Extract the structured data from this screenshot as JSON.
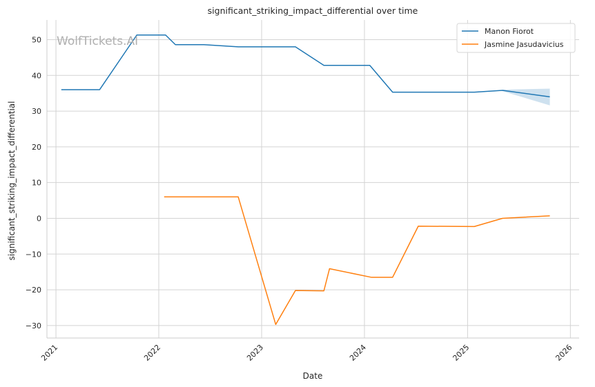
{
  "chart_data": {
    "type": "line",
    "title": "significant_striking_impact_differential over time",
    "xlabel": "Date",
    "ylabel": "significant_striking_impact_differential",
    "watermark": "WolfTickets.AI",
    "x_ticks": [
      "2021",
      "2022",
      "2023",
      "2024",
      "2025",
      "2026"
    ],
    "y_ticks": [
      -30,
      -20,
      -10,
      0,
      10,
      20,
      30,
      40,
      50
    ],
    "xlim": [
      "2020-11-30",
      "2026-02-01"
    ],
    "ylim": [
      -33.5,
      55.5
    ],
    "grid": true,
    "legend_position": "top-right",
    "series": [
      {
        "name": "Manon Fiorot",
        "color": "#1f77b4",
        "x": [
          "2021-01-20",
          "2021-06-05",
          "2021-10-15",
          "2022-01-25",
          "2022-03-01",
          "2022-06-10",
          "2022-10-10",
          "2023-05-01",
          "2023-08-10",
          "2024-01-20",
          "2024-04-10",
          "2025-01-25",
          "2025-05-05",
          "2025-10-20"
        ],
        "y": [
          36.0,
          36.0,
          51.3,
          51.3,
          48.6,
          48.6,
          48.0,
          48.0,
          42.8,
          42.8,
          35.3,
          35.3,
          35.8,
          34.0
        ],
        "band": {
          "x": [
            "2025-05-05",
            "2025-10-20"
          ],
          "lower": [
            35.6,
            31.6
          ],
          "upper": [
            36.0,
            36.3
          ]
        }
      },
      {
        "name": "Jasmine Jasudavicius",
        "color": "#ff7f0e",
        "x": [
          "2022-01-20",
          "2022-10-10",
          "2023-02-20",
          "2023-05-01",
          "2023-08-10",
          "2023-08-30",
          "2024-01-25",
          "2024-04-10",
          "2024-07-10",
          "2025-01-25",
          "2025-05-05",
          "2025-10-20"
        ],
        "y": [
          6.0,
          6.0,
          -29.7,
          -20.2,
          -20.3,
          -14.1,
          -16.5,
          -16.5,
          -2.2,
          -2.3,
          0.0,
          0.7
        ]
      }
    ]
  }
}
